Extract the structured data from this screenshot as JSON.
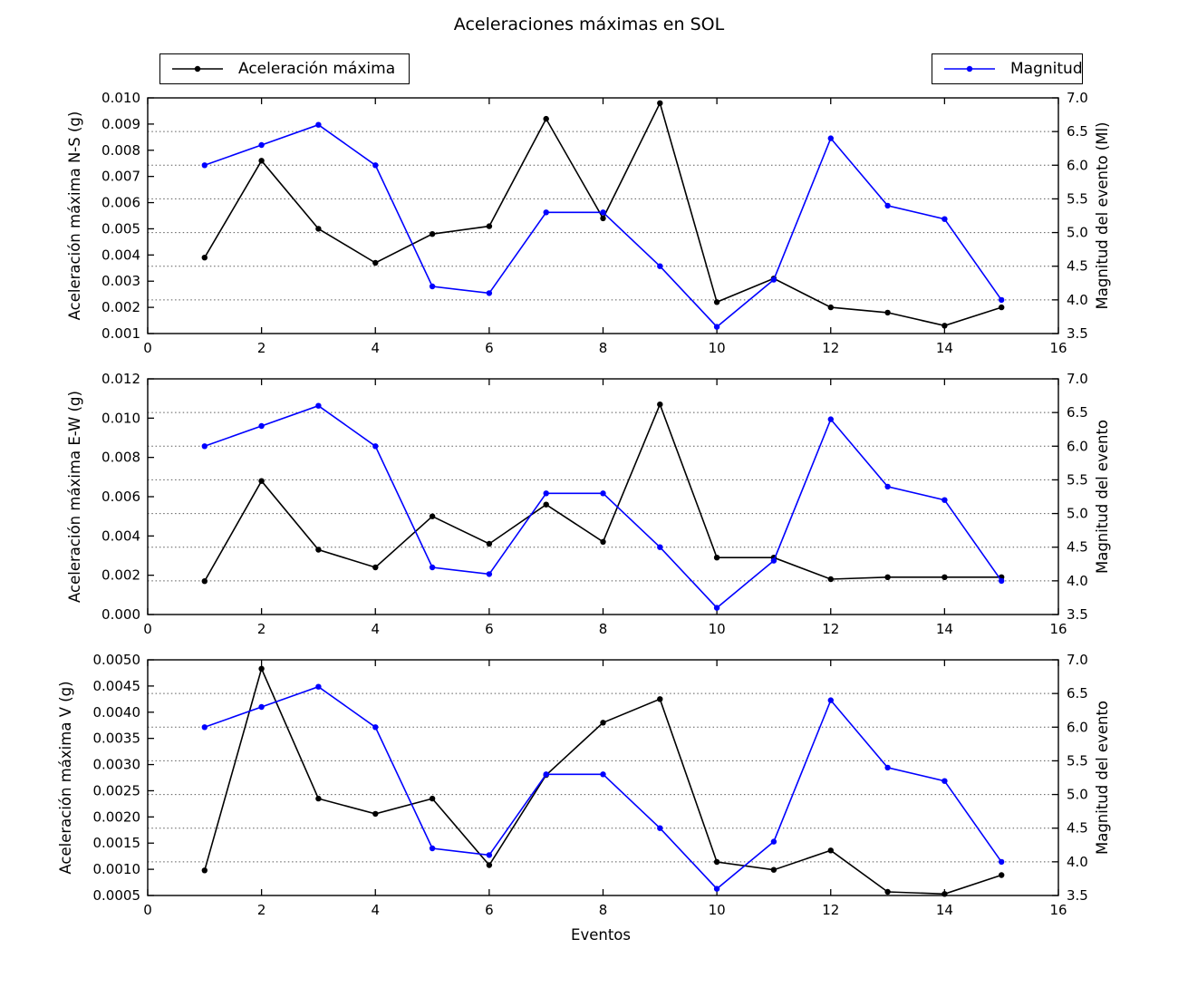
{
  "title": "Aceleraciones máximas en SOL",
  "xlabel": "Eventos",
  "legends": [
    {
      "label": "Aceleración máxima",
      "color": "#000000"
    },
    {
      "label": "Magnitud",
      "color": "#0000ff"
    }
  ],
  "colors": {
    "acceleration": "#000000",
    "magnitude": "#0000ff",
    "grid_dotted": "#5a5a5a",
    "frame": "#000000"
  },
  "chart_data": [
    {
      "id": "ns",
      "type": "line",
      "ylabel": "Aceleración máxima N-S (g)",
      "ylabel_right": "Magnitud del evento (Ml)",
      "xlim": [
        0,
        16
      ],
      "xticks": [
        0,
        2,
        4,
        6,
        8,
        10,
        12,
        14,
        16
      ],
      "ylim": [
        0.001,
        0.01
      ],
      "ytick_values": [
        0.001,
        0.002,
        0.003,
        0.004,
        0.005,
        0.006,
        0.007,
        0.008,
        0.009,
        0.01
      ],
      "ytick_labels": [
        "0.001",
        "0.002",
        "0.003",
        "0.004",
        "0.005",
        "0.006",
        "0.007",
        "0.008",
        "0.009",
        "0.010"
      ],
      "ylim_right": [
        3.5,
        7.0
      ],
      "ytick_right_values": [
        3.5,
        4.0,
        4.5,
        5.0,
        5.5,
        6.0,
        6.5,
        7.0
      ],
      "ytick_right_labels": [
        "3.5",
        "4.0",
        "4.5",
        "5.0",
        "5.5",
        "6.0",
        "6.5",
        "7.0"
      ],
      "grid": "horizontal dotted at right-axis ticks",
      "x": [
        1,
        2,
        3,
        4,
        5,
        6,
        7,
        8,
        9,
        10,
        11,
        12,
        13,
        14,
        15
      ],
      "series": [
        {
          "name": "Aceleración máxima",
          "axis": "left",
          "color": "#000000",
          "values": [
            0.0039,
            0.0076,
            0.005,
            0.0037,
            0.0048,
            0.0051,
            0.0092,
            0.0054,
            0.0098,
            0.0022,
            0.0031,
            0.002,
            0.0018,
            0.0013,
            0.002
          ]
        },
        {
          "name": "Magnitud",
          "axis": "right",
          "color": "#0000ff",
          "values": [
            6.0,
            6.3,
            6.6,
            6.0,
            4.2,
            4.1,
            5.3,
            5.3,
            4.5,
            3.6,
            4.3,
            6.4,
            5.4,
            5.2,
            4.0
          ]
        }
      ]
    },
    {
      "id": "ew",
      "type": "line",
      "ylabel": "Aceleración máxima E-W (g)",
      "ylabel_right": "Magnitud del evento",
      "xlim": [
        0,
        16
      ],
      "xticks": [
        0,
        2,
        4,
        6,
        8,
        10,
        12,
        14,
        16
      ],
      "ylim": [
        0.0,
        0.012
      ],
      "ytick_values": [
        0.0,
        0.002,
        0.004,
        0.006,
        0.008,
        0.01,
        0.012
      ],
      "ytick_labels": [
        "0.000",
        "0.002",
        "0.004",
        "0.006",
        "0.008",
        "0.010",
        "0.012"
      ],
      "ylim_right": [
        3.5,
        7.0
      ],
      "ytick_right_values": [
        3.5,
        4.0,
        4.5,
        5.0,
        5.5,
        6.0,
        6.5,
        7.0
      ],
      "ytick_right_labels": [
        "3.5",
        "4.0",
        "4.5",
        "5.0",
        "5.5",
        "6.0",
        "6.5",
        "7.0"
      ],
      "grid": "horizontal dotted at right-axis ticks",
      "x": [
        1,
        2,
        3,
        4,
        5,
        6,
        7,
        8,
        9,
        10,
        11,
        12,
        13,
        14,
        15
      ],
      "series": [
        {
          "name": "Aceleración máxima",
          "axis": "left",
          "color": "#000000",
          "values": [
            0.0017,
            0.0068,
            0.0033,
            0.0024,
            0.005,
            0.0036,
            0.0056,
            0.0037,
            0.0107,
            0.0029,
            0.0029,
            0.0018,
            0.0019,
            0.0019,
            0.0019
          ]
        },
        {
          "name": "Magnitud",
          "axis": "right",
          "color": "#0000ff",
          "values": [
            6.0,
            6.3,
            6.6,
            6.0,
            4.2,
            4.1,
            5.3,
            5.3,
            4.5,
            3.6,
            4.3,
            6.4,
            5.4,
            5.2,
            4.0
          ]
        }
      ]
    },
    {
      "id": "v",
      "type": "line",
      "ylabel": "Aceleración máxima V (g)",
      "ylabel_right": "Magnitud del evento",
      "xlim": [
        0,
        16
      ],
      "xticks": [
        0,
        2,
        4,
        6,
        8,
        10,
        12,
        14,
        16
      ],
      "ylim": [
        0.0005,
        0.005
      ],
      "ytick_values": [
        0.0005,
        0.001,
        0.0015,
        0.002,
        0.0025,
        0.003,
        0.0035,
        0.004,
        0.0045,
        0.005
      ],
      "ytick_labels": [
        "0.0005",
        "0.0010",
        "0.0015",
        "0.0020",
        "0.0025",
        "0.0030",
        "0.0035",
        "0.0040",
        "0.0045",
        "0.0050"
      ],
      "ylim_right": [
        3.5,
        7.0
      ],
      "ytick_right_values": [
        3.5,
        4.0,
        4.5,
        5.0,
        5.5,
        6.0,
        6.5,
        7.0
      ],
      "ytick_right_labels": [
        "3.5",
        "4.0",
        "4.5",
        "5.0",
        "5.5",
        "6.0",
        "6.5",
        "7.0"
      ],
      "grid": "horizontal dotted at right-axis ticks",
      "x": [
        1,
        2,
        3,
        4,
        5,
        6,
        7,
        8,
        9,
        10,
        11,
        12,
        13,
        14,
        15
      ],
      "series": [
        {
          "name": "Aceleración máxima",
          "axis": "left",
          "color": "#000000",
          "values": [
            0.00098,
            0.00483,
            0.00235,
            0.00206,
            0.00235,
            0.00108,
            0.0028,
            0.0038,
            0.00425,
            0.00114,
            0.00099,
            0.00136,
            0.00057,
            0.00053,
            0.00089
          ]
        },
        {
          "name": "Magnitud",
          "axis": "right",
          "color": "#0000ff",
          "values": [
            6.0,
            6.3,
            6.6,
            6.0,
            4.2,
            4.1,
            5.3,
            5.3,
            4.5,
            3.6,
            4.3,
            6.4,
            5.4,
            5.2,
            4.0
          ]
        }
      ]
    }
  ]
}
